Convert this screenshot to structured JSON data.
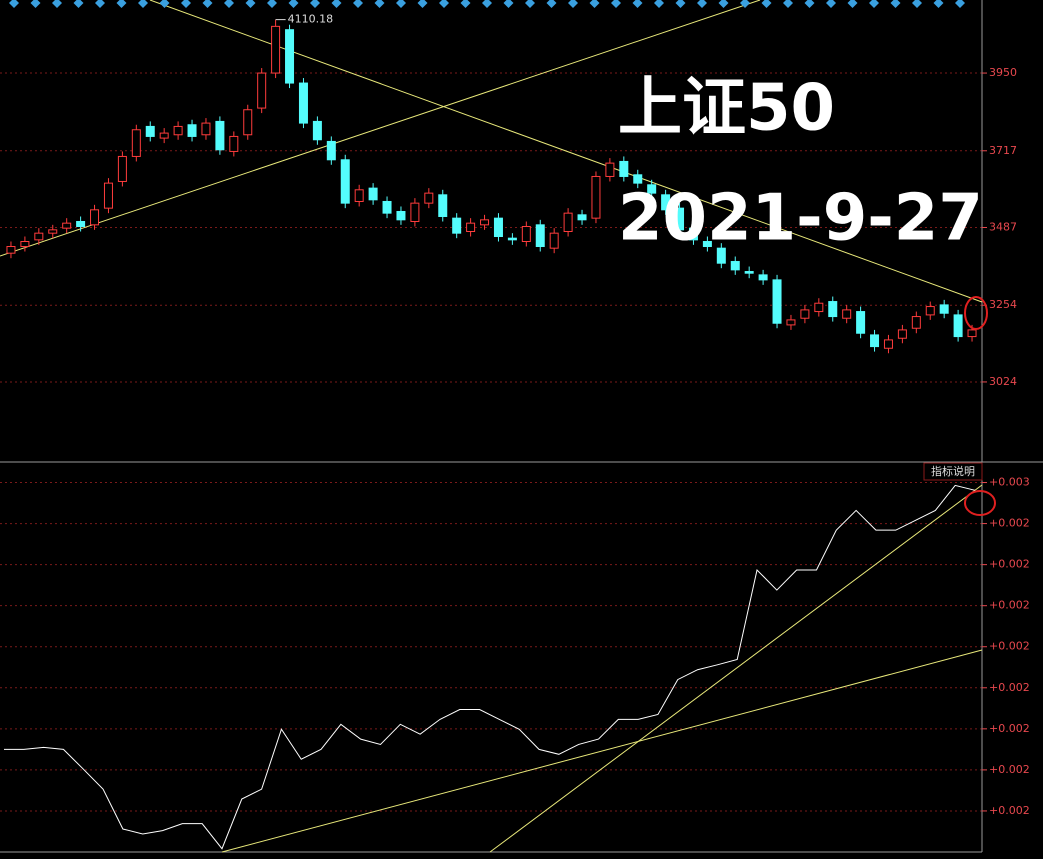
{
  "chart_data": [
    {
      "type": "candlestick",
      "title": "上证50",
      "subtitle": "2021-9-27",
      "up_color": "#ff3c3c",
      "down_color": "#54fcfc",
      "open": [
        3410,
        3430,
        3450,
        3470,
        3485,
        3505,
        3495,
        3545,
        3625,
        3700,
        3790,
        3755,
        3765,
        3795,
        3765,
        3805,
        3715,
        3765,
        3845,
        3950,
        4080,
        3920,
        3805,
        3745,
        3690,
        3565,
        3605,
        3565,
        3535,
        3505,
        3560,
        3585,
        3515,
        3475,
        3495,
        3515,
        3455,
        3445,
        3495,
        3425,
        3475,
        3525,
        3515,
        3640,
        3685,
        3645,
        3615,
        3585,
        3545,
        3485,
        3445,
        3425,
        3385,
        3355,
        3345,
        3330,
        3195,
        3215,
        3235,
        3265,
        3215,
        3235,
        3165,
        3125,
        3155,
        3185,
        3225,
        3255,
        3225,
        3160
      ],
      "high": [
        3445,
        3460,
        3485,
        3495,
        3515,
        3520,
        3555,
        3635,
        3715,
        3795,
        3805,
        3785,
        3805,
        3810,
        3815,
        3820,
        3775,
        3855,
        3965,
        4110.18,
        4095,
        3935,
        3820,
        3760,
        3705,
        3615,
        3620,
        3580,
        3550,
        3575,
        3605,
        3600,
        3530,
        3515,
        3525,
        3530,
        3470,
        3505,
        3510,
        3485,
        3545,
        3540,
        3655,
        3695,
        3700,
        3660,
        3630,
        3600,
        3560,
        3500,
        3460,
        3440,
        3400,
        3370,
        3360,
        3345,
        3225,
        3255,
        3275,
        3280,
        3255,
        3250,
        3180,
        3165,
        3195,
        3235,
        3265,
        3270,
        3240,
        3195
      ],
      "low": [
        3395,
        3415,
        3435,
        3455,
        3470,
        3475,
        3480,
        3530,
        3610,
        3685,
        3745,
        3740,
        3750,
        3745,
        3750,
        3705,
        3700,
        3750,
        3830,
        3935,
        3905,
        3785,
        3735,
        3675,
        3545,
        3550,
        3555,
        3515,
        3495,
        3490,
        3545,
        3505,
        3455,
        3460,
        3480,
        3445,
        3435,
        3430,
        3415,
        3410,
        3460,
        3495,
        3500,
        3625,
        3625,
        3605,
        3575,
        3525,
        3465,
        3435,
        3415,
        3365,
        3345,
        3335,
        3315,
        3185,
        3180,
        3200,
        3220,
        3205,
        3200,
        3155,
        3115,
        3110,
        3140,
        3170,
        3210,
        3215,
        3145,
        3145
      ],
      "close": [
        3430,
        3445,
        3470,
        3480,
        3500,
        3490,
        3540,
        3620,
        3700,
        3780,
        3760,
        3770,
        3790,
        3760,
        3800,
        3720,
        3760,
        3840,
        3950,
        4090,
        3920,
        3800,
        3750,
        3690,
        3560,
        3600,
        3570,
        3530,
        3510,
        3560,
        3590,
        3520,
        3470,
        3500,
        3510,
        3460,
        3450,
        3490,
        3430,
        3470,
        3530,
        3510,
        3640,
        3680,
        3640,
        3620,
        3590,
        3540,
        3480,
        3450,
        3430,
        3380,
        3360,
        3350,
        3330,
        3200,
        3210,
        3240,
        3260,
        3220,
        3240,
        3170,
        3130,
        3150,
        3180,
        3220,
        3250,
        3230,
        3160,
        3180
      ],
      "ylim": [
        2784,
        4169
      ],
      "yticks": [
        3950,
        3717,
        3487,
        3254,
        3024
      ],
      "grid": true
    },
    {
      "type": "line",
      "button": "指标说明",
      "color": "#ffffff",
      "values": [
        0.00185,
        0.00185,
        0.001855,
        0.00185,
        0.001802,
        0.001753,
        0.001656,
        0.001644,
        0.001652,
        0.001669,
        0.001669,
        0.001608,
        0.001729,
        0.001753,
        0.001899,
        0.001826,
        0.00185,
        0.001911,
        0.001875,
        0.001862,
        0.001911,
        0.001887,
        0.001923,
        0.001947,
        0.001947,
        0.001923,
        0.001899,
        0.00185,
        0.001838,
        0.001862,
        0.001875,
        0.001923,
        0.001923,
        0.001935,
        0.00202,
        0.002044,
        0.002056,
        0.002069,
        0.002287,
        0.002238,
        0.002287,
        0.002287,
        0.002384,
        0.002432,
        0.002384,
        0.002384,
        0.002408,
        0.002432,
        0.002493,
        0.002481
      ],
      "ylim": [
        0.0016,
        0.00255
      ],
      "yticks": [
        {
          "value": 0.0025,
          "label": "+0.003"
        },
        {
          "value": 0.0024,
          "label": "+0.002"
        },
        {
          "value": 0.0023,
          "label": "+0.002"
        },
        {
          "value": 0.0022,
          "label": "+0.002"
        },
        {
          "value": 0.0021,
          "label": "+0.002"
        },
        {
          "value": 0.002,
          "label": "+0.002"
        },
        {
          "value": 0.0019,
          "label": "+0.002"
        },
        {
          "value": 0.0018,
          "label": "+0.002"
        },
        {
          "value": 0.0017,
          "label": "+0.002"
        }
      ],
      "grid": true
    }
  ]
}
